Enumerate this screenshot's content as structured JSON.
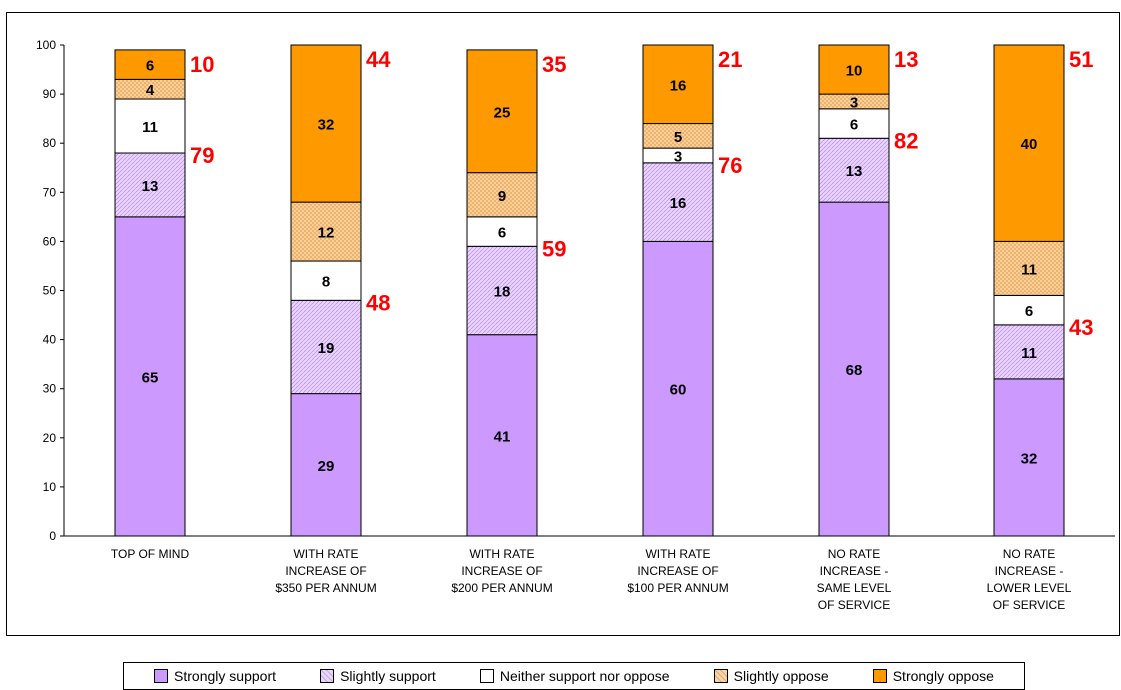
{
  "chart_data": {
    "type": "bar",
    "stacked": true,
    "title": "",
    "xlabel": "",
    "ylabel": "",
    "ylim": [
      0,
      100
    ],
    "yticks": [
      0,
      10,
      20,
      30,
      40,
      50,
      60,
      70,
      80,
      90,
      100
    ],
    "grid": false,
    "legend_position": "bottom",
    "categories": [
      [
        "TOP OF MIND"
      ],
      [
        "WITH RATE",
        "INCREASE OF",
        "$350 PER ANNUM"
      ],
      [
        "WITH RATE",
        "INCREASE OF",
        "$200 PER ANNUM"
      ],
      [
        "WITH RATE",
        "INCREASE OF",
        "$100 PER ANNUM"
      ],
      [
        "NO RATE",
        "INCREASE -",
        "SAME LEVEL",
        "OF SERVICE"
      ],
      [
        "NO RATE",
        "INCREASE -",
        "LOWER LEVEL",
        "OF SERVICE"
      ]
    ],
    "series": [
      {
        "name": "Strongly support",
        "color": "#cc99ff",
        "pattern": "solid",
        "values": [
          65,
          29,
          41,
          60,
          68,
          32
        ]
      },
      {
        "name": "Slightly support",
        "color": "#e9d5ff",
        "pattern": "hatch",
        "values": [
          13,
          19,
          18,
          16,
          13,
          11
        ]
      },
      {
        "name": "Neither support nor oppose",
        "color": "#ffffff",
        "pattern": "solid",
        "values": [
          11,
          8,
          6,
          3,
          6,
          6
        ]
      },
      {
        "name": "Slightly oppose",
        "color": "#fbd4a0",
        "pattern": "hatch",
        "values": [
          4,
          12,
          9,
          5,
          3,
          11
        ]
      },
      {
        "name": "Strongly oppose",
        "color": "#ff9900",
        "pattern": "solid",
        "values": [
          6,
          32,
          25,
          16,
          10,
          40
        ]
      }
    ],
    "support_totals": [
      79,
      48,
      59,
      76,
      82,
      43
    ],
    "oppose_totals": [
      10,
      44,
      35,
      21,
      13,
      51
    ],
    "total_label_color": "#ff0000"
  }
}
